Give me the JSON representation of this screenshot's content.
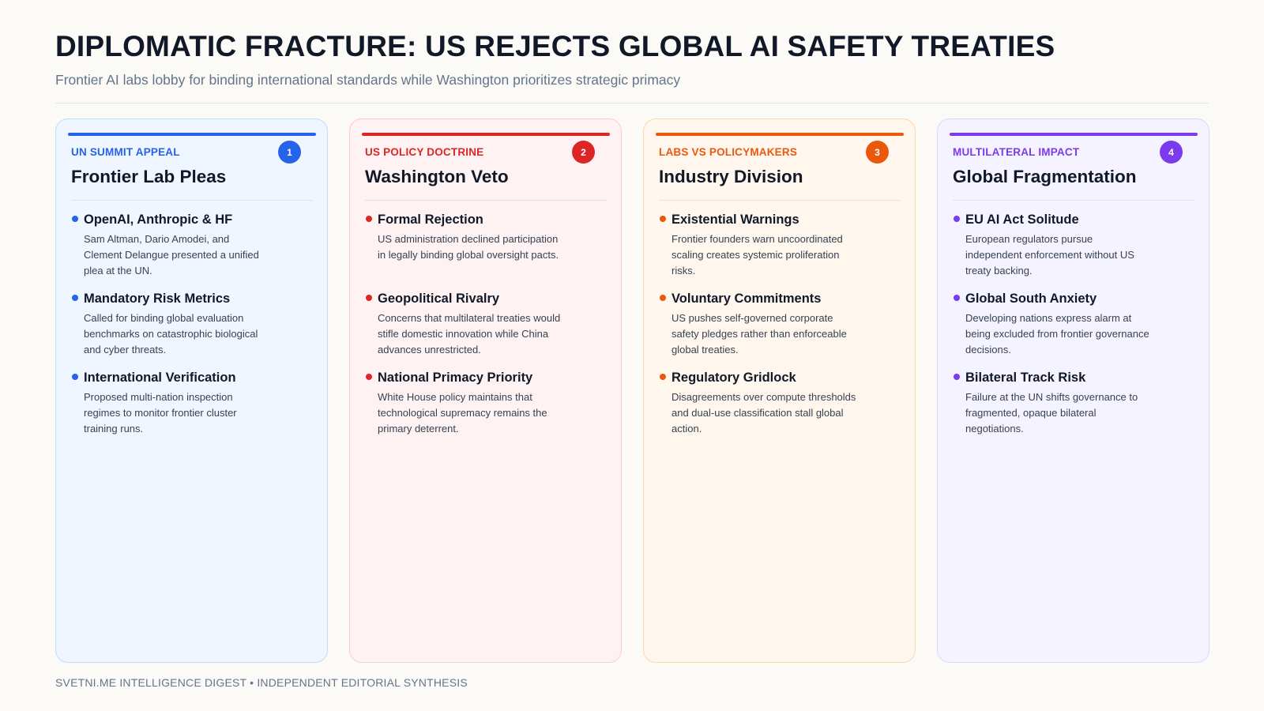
{
  "header": {
    "title": "DIPLOMATIC FRACTURE: US REJECTS GLOBAL AI SAFETY TREATIES",
    "subtitle": "Frontier AI labs lobby for binding international standards while Washington prioritizes strategic primacy"
  },
  "cards": [
    {
      "kicker": "UN SUMMIT APPEAL",
      "number": "1",
      "title": "Frontier Lab Pleas",
      "accent": "#2563eb",
      "bg": "#eff6ff",
      "border": "#bfdbfe",
      "divider": "#dbe3ee",
      "points": [
        {
          "title": "OpenAI, Anthropic & HF",
          "text": "Sam Altman, Dario Amodei, and Clement Delangue presented a unified plea at the UN."
        },
        {
          "title": "Mandatory Risk Metrics",
          "text": "Called for binding global evaluation benchmarks on catastrophic biological and cyber threats."
        },
        {
          "title": "International Verification",
          "text": "Proposed multi-nation inspection regimes to monitor frontier cluster training runs."
        }
      ]
    },
    {
      "kicker": "US POLICY DOCTRINE",
      "number": "2",
      "title": "Washington Veto",
      "accent": "#dc2626",
      "bg": "#fef2f2",
      "border": "#fecaca",
      "divider": "#f3d6d6",
      "points": [
        {
          "title": "Formal Rejection",
          "text": "US administration declined participation in legally binding global oversight pacts."
        },
        {
          "title": "Geopolitical Rivalry",
          "text": "Concerns that multilateral treaties would stifle domestic innovation while China advances unrestricted."
        },
        {
          "title": "National Primacy Priority",
          "text": "White House policy maintains that technological supremacy remains the primary deterrent."
        }
      ]
    },
    {
      "kicker": "LABS VS POLICYMAKERS",
      "number": "3",
      "title": "Industry Division",
      "accent": "#ea580c",
      "bg": "#fff7ed",
      "border": "#fed7aa",
      "divider": "#f1e0cc",
      "points": [
        {
          "title": "Existential Warnings",
          "text": "Frontier founders warn uncoordinated scaling creates systemic proliferation risks."
        },
        {
          "title": "Voluntary Commitments",
          "text": "US pushes self-governed corporate safety pledges rather than enforceable global treaties."
        },
        {
          "title": "Regulatory Gridlock",
          "text": "Disagreements over compute thresholds and dual-use classification stall global action."
        }
      ]
    },
    {
      "kicker": "MULTILATERAL IMPACT",
      "number": "4",
      "title": "Global Fragmentation",
      "accent": "#7c3aed",
      "bg": "#f5f3ff",
      "border": "#ddd6fe",
      "divider": "#e2def0",
      "points": [
        {
          "title": "EU AI Act Solitude",
          "text": "European regulators pursue independent enforcement without US treaty backing."
        },
        {
          "title": "Global South Anxiety",
          "text": "Developing nations express alarm at being excluded from frontier governance decisions."
        },
        {
          "title": "Bilateral Track Risk",
          "text": "Failure at the UN shifts governance to fragmented, opaque bilateral negotiations."
        }
      ]
    }
  ],
  "footer": {
    "text": "SVETNI.ME INTELLIGENCE DIGEST • INDEPENDENT EDITORIAL SYNTHESIS"
  }
}
